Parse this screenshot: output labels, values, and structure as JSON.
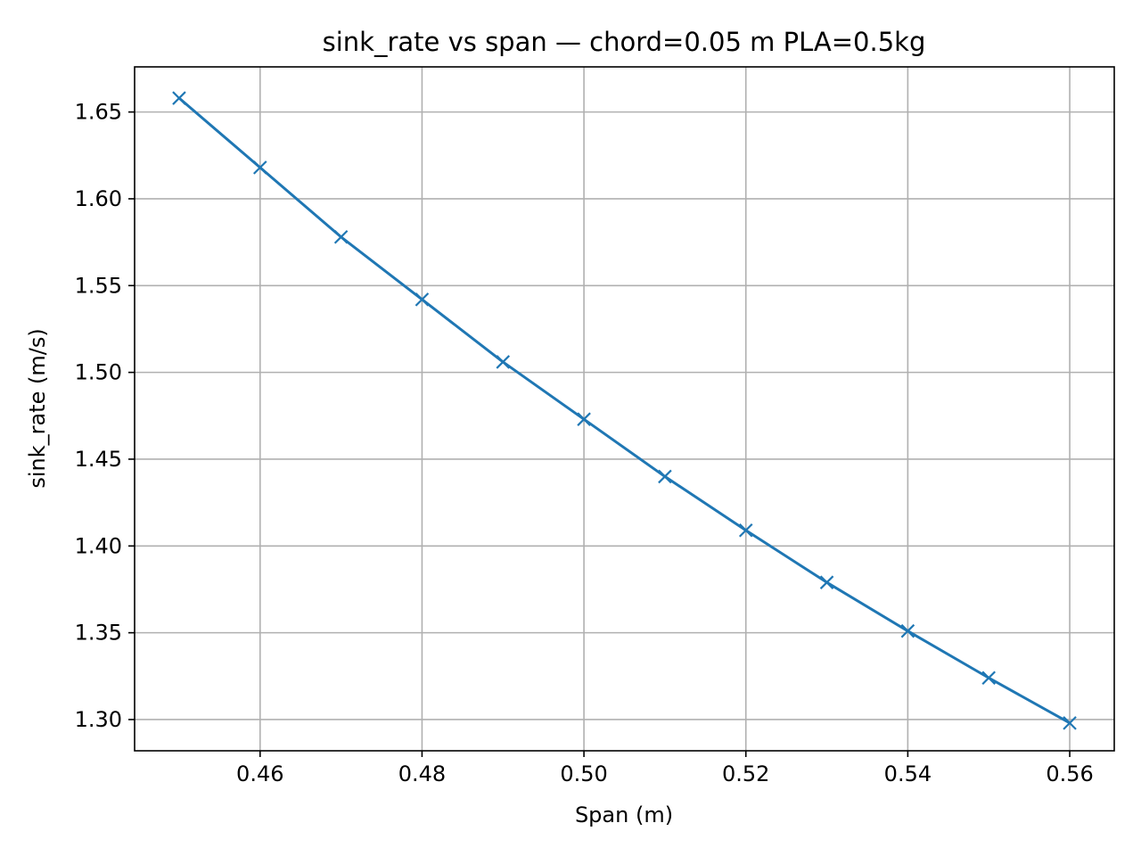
{
  "chart_data": {
    "type": "line",
    "title": "sink_rate vs span — chord=0.05 m PLA=0.5kg",
    "xlabel": "Span (m)",
    "ylabel": "sink_rate (m/s)",
    "xlim": [
      0.4445,
      0.5655
    ],
    "ylim": [
      1.282,
      1.676
    ],
    "xticks": [
      0.46,
      0.48,
      0.5,
      0.52,
      0.54,
      0.56
    ],
    "xtick_labels": [
      "0.46",
      "0.48",
      "0.50",
      "0.52",
      "0.54",
      "0.56"
    ],
    "yticks": [
      1.3,
      1.35,
      1.4,
      1.45,
      1.5,
      1.55,
      1.6,
      1.65
    ],
    "ytick_labels": [
      "1.30",
      "1.35",
      "1.40",
      "1.45",
      "1.50",
      "1.55",
      "1.60",
      "1.65"
    ],
    "grid": true,
    "series": [
      {
        "color": "#1f77b4",
        "marker": "x",
        "x": [
          0.45,
          0.46,
          0.47,
          0.48,
          0.49,
          0.5,
          0.51,
          0.52,
          0.53,
          0.54,
          0.55,
          0.56
        ],
        "y": [
          1.658,
          1.618,
          1.578,
          1.542,
          1.506,
          1.473,
          1.44,
          1.409,
          1.379,
          1.351,
          1.324,
          1.298
        ]
      }
    ]
  }
}
